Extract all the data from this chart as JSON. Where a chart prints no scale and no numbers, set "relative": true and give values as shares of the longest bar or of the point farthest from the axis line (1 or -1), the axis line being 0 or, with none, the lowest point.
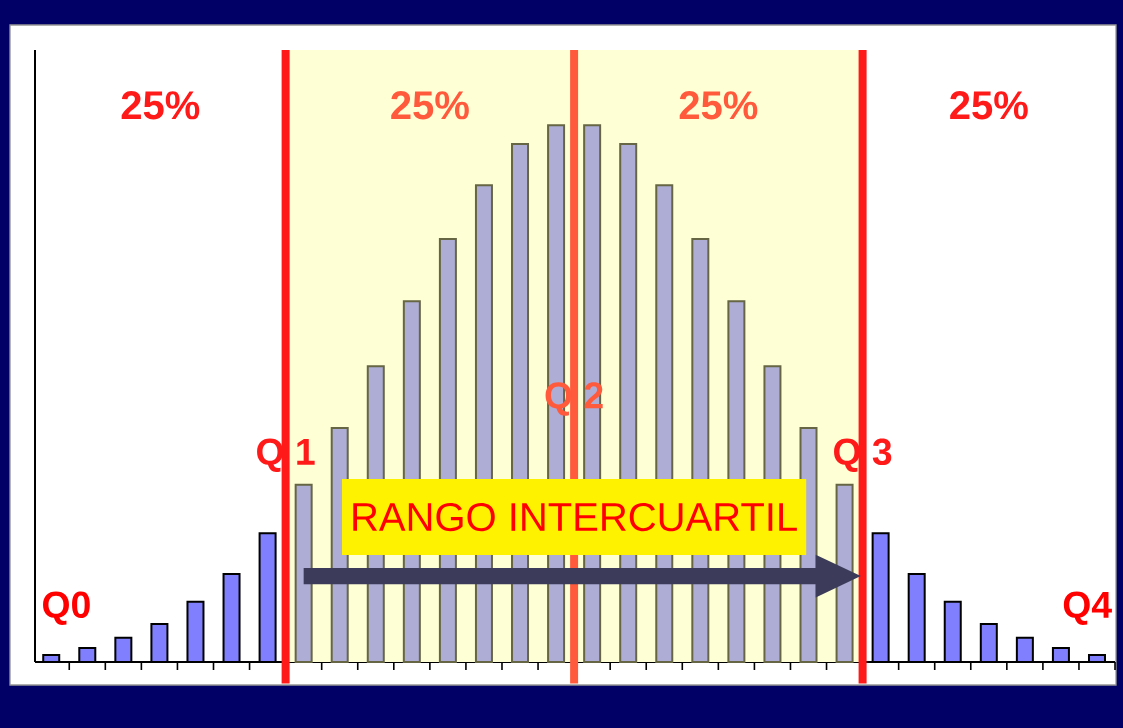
{
  "chart_data": {
    "type": "bar",
    "relative": true,
    "categories": [
      null,
      null,
      null,
      null,
      null,
      null,
      null,
      null,
      null,
      null,
      null,
      null,
      null,
      null,
      null,
      null,
      null,
      null,
      null,
      null,
      null,
      null,
      null,
      null,
      null,
      null,
      null,
      null,
      null,
      null
    ],
    "values": [
      0.013,
      0.026,
      0.045,
      0.071,
      0.112,
      0.164,
      0.24,
      0.33,
      0.436,
      0.551,
      0.672,
      0.788,
      0.888,
      0.965,
      1,
      1,
      0.965,
      0.888,
      0.788,
      0.672,
      0.551,
      0.436,
      0.33,
      0.24,
      0.164,
      0.112,
      0.071,
      0.045,
      0.026,
      0.013
    ],
    "colors": [
      "#8080ff",
      "#8080ff",
      "#8080ff",
      "#8080ff",
      "#8080ff",
      "#8080ff",
      "#8080ff",
      "#adadd6",
      "#adadd6",
      "#adadd6",
      "#adadd6",
      "#adadd6",
      "#adadd6",
      "#adadd6",
      "#adadd6",
      "#adadd6",
      "#adadd6",
      "#adadd6",
      "#adadd6",
      "#adadd6",
      "#adadd6",
      "#adadd6",
      "#adadd6",
      "#8080ff",
      "#8080ff",
      "#8080ff",
      "#8080ff",
      "#8080ff",
      "#8080ff",
      "#8080ff"
    ],
    "annotations": [
      "25%",
      "25%",
      "25%",
      "25%",
      "Q0",
      "Q4",
      "Q 1",
      "Q 2",
      "Q 3",
      "RANGO INTERCUARTIL"
    ]
  }
}
